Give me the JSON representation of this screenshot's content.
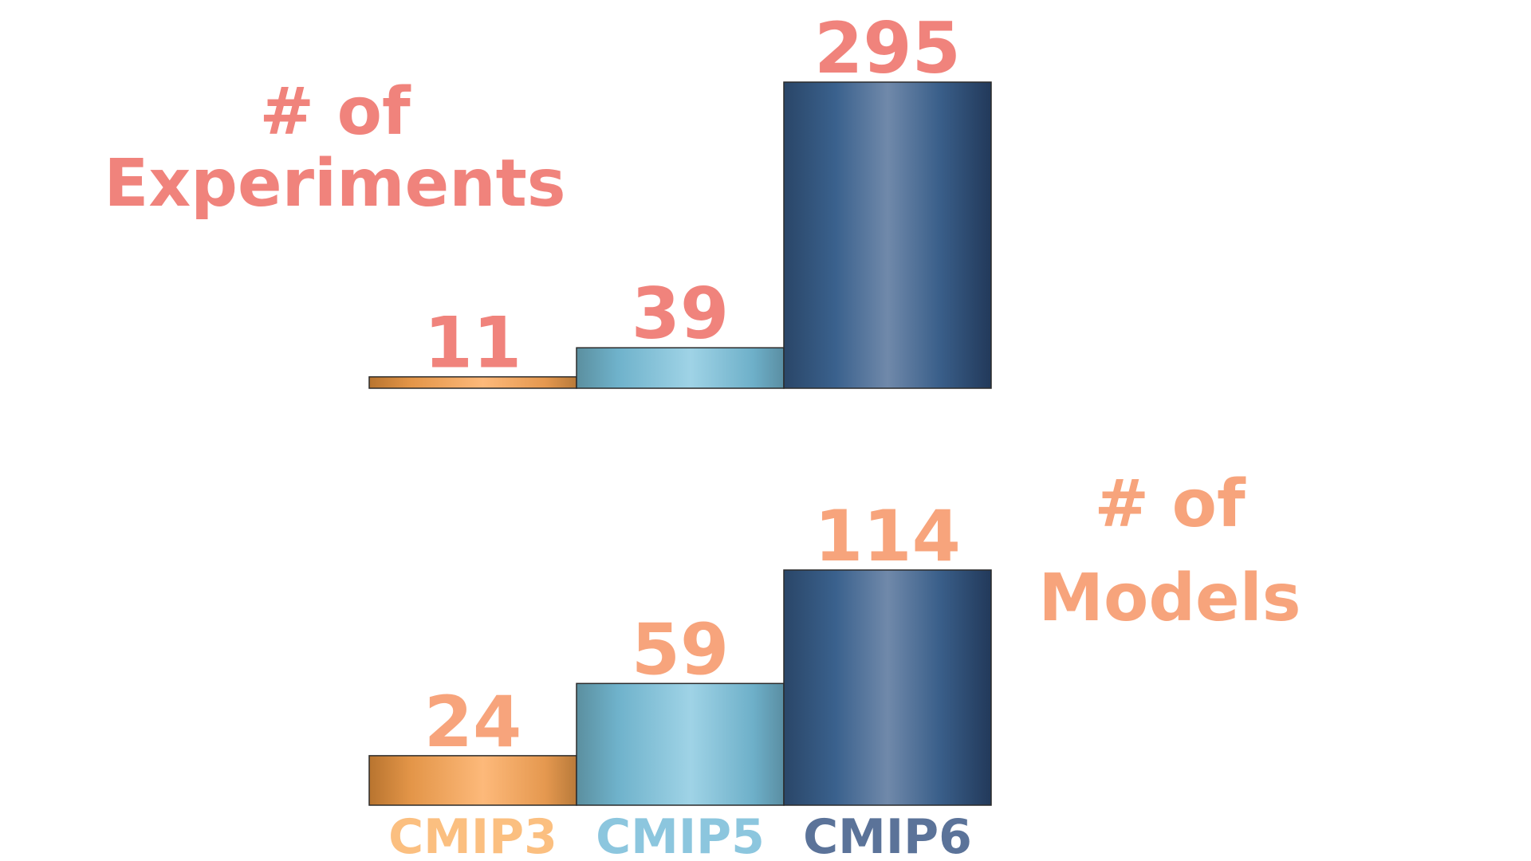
{
  "colors": {
    "experiments_text": "#f0837c",
    "models_text": "#f7a47c",
    "cmip3_label": "#fbbf80",
    "cmip5_label": "#8cc6de",
    "cmip6_label": "#5b7399",
    "cmip3_bar": "#e99a55",
    "cmip5_bar": "#78b8cf",
    "cmip6_bar": "#34567f"
  },
  "chart_data": [
    {
      "type": "bar",
      "title": "# of Experiments",
      "title_lines": [
        "# of",
        "Experiments"
      ],
      "categories": [
        "CMIP3",
        "CMIP5",
        "CMIP6"
      ],
      "values": [
        11,
        39,
        295
      ],
      "ylim": [
        0,
        295
      ],
      "grid": false,
      "xlabel": "",
      "ylabel": ""
    },
    {
      "type": "bar",
      "title": "# of Models",
      "title_lines": [
        "# of",
        "Models"
      ],
      "categories": [
        "CMIP3",
        "CMIP5",
        "CMIP6"
      ],
      "values": [
        24,
        59,
        114
      ],
      "ylim": [
        0,
        114
      ],
      "grid": false,
      "xlabel": "",
      "ylabel": ""
    }
  ],
  "category_labels": [
    "CMIP3",
    "CMIP5",
    "CMIP6"
  ]
}
